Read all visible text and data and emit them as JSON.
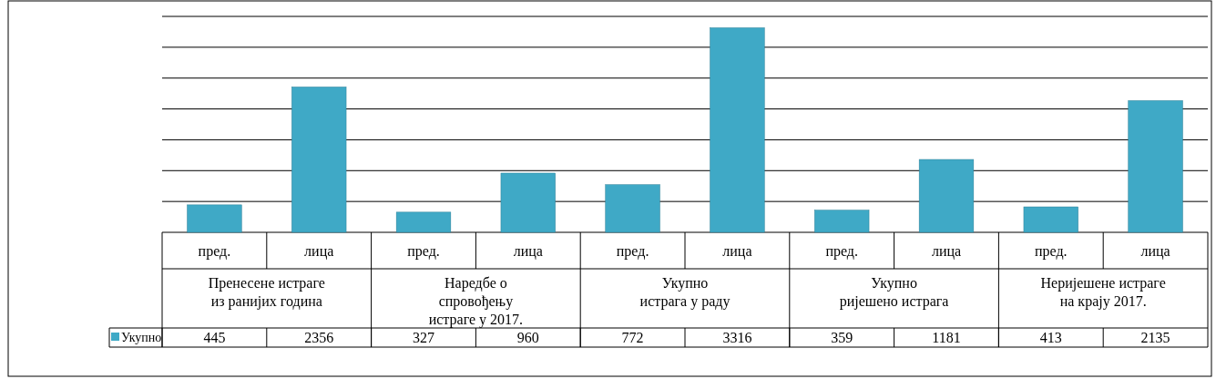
{
  "chart_data": {
    "type": "bar",
    "categories": [
      "пред.",
      "лица",
      "пред.",
      "лица",
      "пред.",
      "лица",
      "пред.",
      "лица",
      "пред.",
      "лица"
    ],
    "series": [
      {
        "name": "Укупно",
        "color": "#3fa9c6",
        "values": [
          445,
          2356,
          327,
          960,
          772,
          3316,
          359,
          1181,
          413,
          2135
        ]
      }
    ],
    "annotations": [
      "Пренесене истраге\nиз ранијих година",
      "Наредбе о\nспровођењу\nистраге у 2017.",
      "Укупно\nистрага у раду",
      "Укупно\nријешено истрага",
      "Неријешене истраге\nна крају 2017."
    ],
    "ylim": [
      0,
      3500
    ],
    "yticks": [
      {
        "value": 0,
        "label": null
      },
      {
        "value": 500,
        "label": null
      },
      {
        "value": 1000,
        "label": null
      },
      {
        "value": 1500,
        "label": null
      },
      {
        "value": 2000,
        "label": null
      },
      {
        "value": 2500,
        "label": null
      },
      {
        "value": 3000,
        "label": null
      },
      {
        "value": 3500,
        "label": null
      }
    ],
    "tick_labels": "x",
    "grid": "y",
    "legend": "bottom",
    "data_labels": true
  }
}
